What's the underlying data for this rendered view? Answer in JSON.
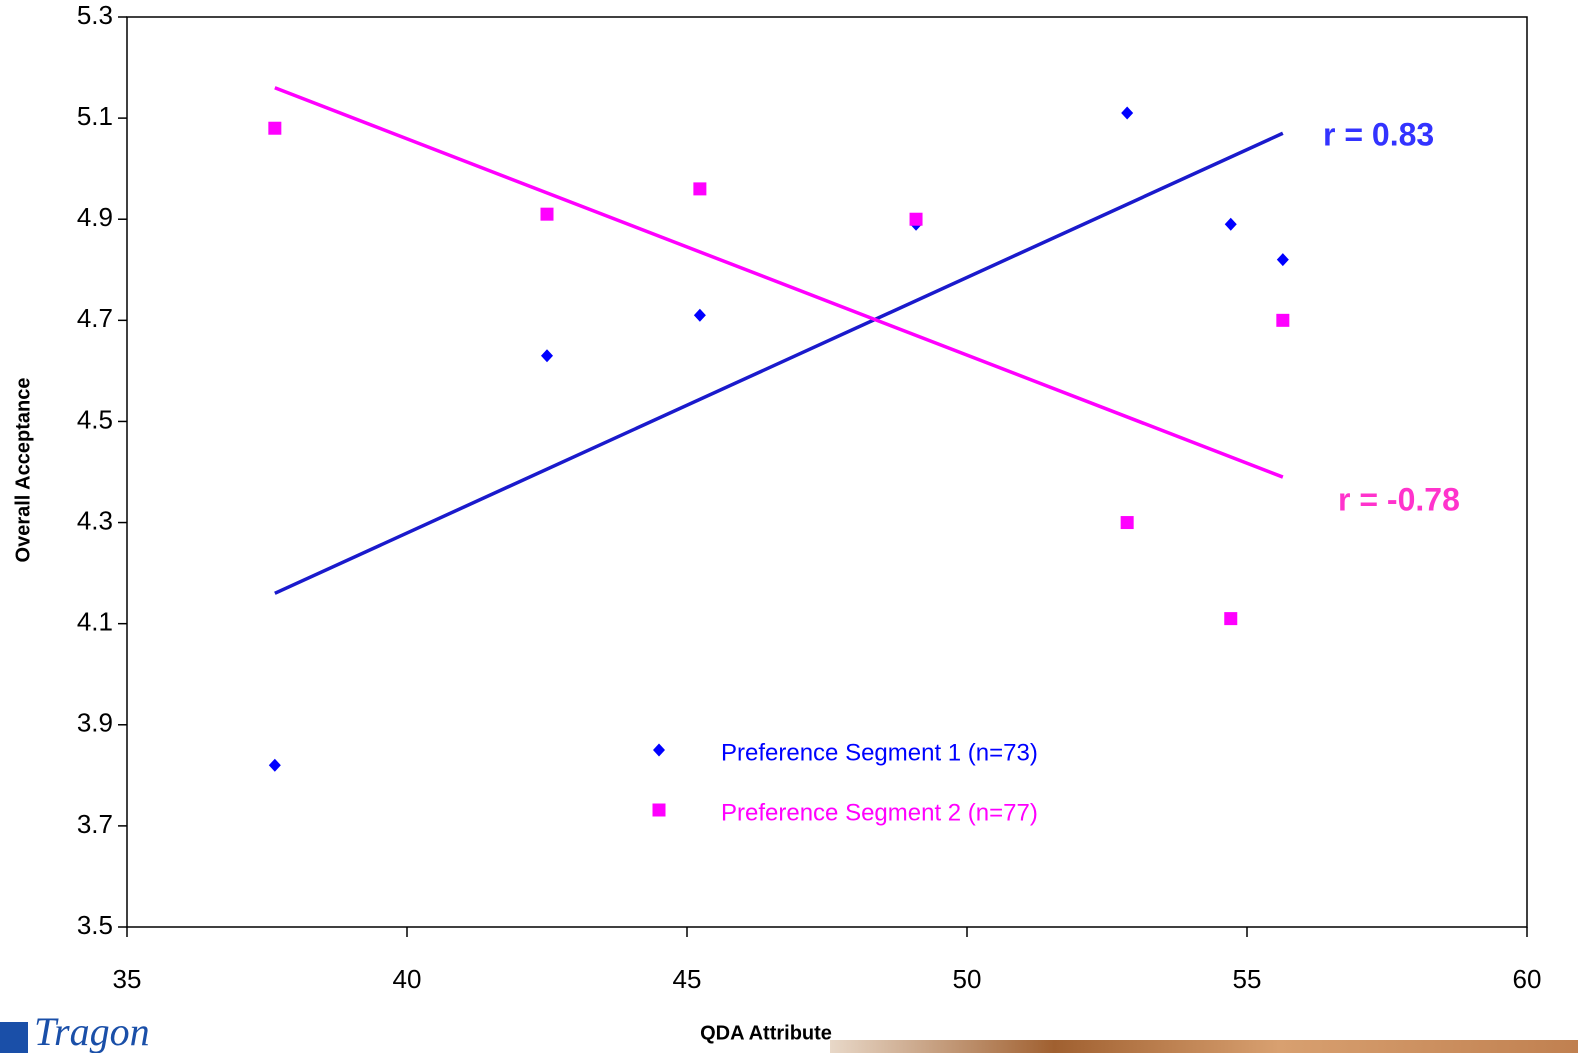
{
  "chart_data": {
    "type": "scatter",
    "x_label": "QDA Attribute",
    "y_label": "Overall Acceptance",
    "x": [
      37.64,
      42.5,
      45.23,
      49.09,
      52.86,
      54.71,
      55.64
    ],
    "series": [
      {
        "name": "Preference Segment 1 (n=73)",
        "color": "#0000ff",
        "marker": "diamond",
        "values": [
          3.82,
          4.63,
          4.71,
          4.89,
          5.11,
          4.89,
          4.82
        ],
        "trendline": {
          "color": "#1a1acc",
          "x": [
            37.64,
            55.64
          ],
          "values": [
            4.16,
            5.07
          ]
        }
      },
      {
        "name": "Preference Segment 2 (n=77)",
        "color": "#ff00ff",
        "marker": "square",
        "values": [
          5.08,
          4.91,
          4.96,
          4.9,
          4.3,
          4.11,
          4.7
        ],
        "trendline": {
          "color": "#ff00ff",
          "x": [
            37.64,
            55.64
          ],
          "values": [
            5.16,
            4.39
          ]
        }
      }
    ],
    "annotations": [
      {
        "text": "r = 0.83",
        "color": "#3333ff"
      },
      {
        "text": "r = -0.78",
        "color": "#ff33cc"
      }
    ],
    "xlim": [
      35,
      60
    ],
    "xticks": [
      35,
      40,
      45,
      50,
      55,
      60
    ],
    "ylim": [
      3.5,
      5.3
    ],
    "yticks": [
      3.5,
      3.7,
      3.9,
      4.1,
      4.3,
      4.5,
      4.7,
      4.9,
      5.1,
      5.3
    ],
    "grid": false
  },
  "logo": "Tragon"
}
